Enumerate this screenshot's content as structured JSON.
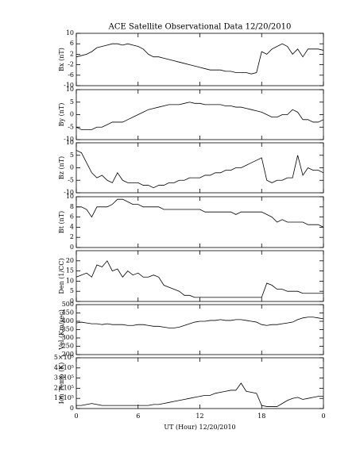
{
  "chart_data": [
    {
      "type": "line",
      "title": "ACE Satellite Observational Data   12/20/2010",
      "ylabel": "Bx (nT)",
      "x": [
        0,
        0.5,
        1,
        1.5,
        2,
        2.5,
        3,
        3.5,
        4,
        4.5,
        5,
        5.5,
        6,
        6.5,
        7,
        7.5,
        8,
        8.5,
        9,
        9.5,
        10,
        10.5,
        11,
        11.5,
        12,
        12.5,
        13,
        13.5,
        14,
        14.5,
        15,
        15.5,
        16,
        16.5,
        17,
        17.5,
        18,
        18.5,
        19,
        19.5,
        20,
        20.5,
        21,
        21.5,
        22,
        22.5,
        23,
        23.5,
        24
      ],
      "values": [
        1,
        1.5,
        2,
        3,
        4.5,
        5,
        5.5,
        6,
        6,
        5.5,
        6,
        5.5,
        5,
        4,
        2,
        1,
        1,
        0.5,
        0,
        -0.5,
        -1,
        -1.5,
        -2,
        -2.5,
        -3,
        -3.5,
        -4,
        -4,
        -4,
        -4.5,
        -4.5,
        -5,
        -5,
        -5,
        -5.5,
        -5,
        3,
        2,
        4,
        5,
        6,
        5,
        2,
        4,
        1,
        4,
        4,
        4,
        3.5
      ],
      "color": "#000000",
      "xlim": [
        0,
        24
      ],
      "xticks": [
        0,
        6,
        12,
        18,
        {
          "value": 24,
          "label": "0"
        }
      ],
      "ylim": [
        -10,
        10
      ],
      "yticks": [
        -10,
        -6,
        -2,
        2,
        6,
        10
      ]
    },
    {
      "type": "line",
      "ylabel": "By (nT)",
      "x": [
        0,
        0.5,
        1,
        1.5,
        2,
        2.5,
        3,
        3.5,
        4,
        4.5,
        5,
        5.5,
        6,
        6.5,
        7,
        7.5,
        8,
        8.5,
        9,
        9.5,
        10,
        10.5,
        11,
        11.5,
        12,
        12.5,
        13,
        13.5,
        14,
        14.5,
        15,
        15.5,
        16,
        16.5,
        17,
        17.5,
        18,
        18.5,
        19,
        19.5,
        20,
        20.5,
        21,
        21.5,
        22,
        22.5,
        23,
        23.5,
        24
      ],
      "values": [
        -5,
        -6,
        -6,
        -6,
        -5,
        -5,
        -4,
        -3,
        -3,
        -3,
        -2,
        -1,
        0,
        1,
        2,
        2.5,
        3,
        3.5,
        4,
        4,
        4,
        4.5,
        5,
        4.5,
        4.5,
        4,
        4,
        4,
        4,
        3.5,
        3.5,
        3,
        3,
        2.5,
        2,
        1.5,
        1,
        0,
        -1,
        -1,
        0,
        0,
        2,
        1,
        -2,
        -2,
        -3,
        -3,
        -2
      ],
      "color": "#000000",
      "xlim": [
        0,
        24
      ],
      "xticks": [
        0,
        6,
        12,
        18,
        {
          "value": 24,
          "label": "0"
        }
      ],
      "ylim": [
        -10,
        10
      ],
      "yticks": [
        -10,
        -5,
        0,
        5,
        10
      ]
    },
    {
      "type": "line",
      "ylabel": "Bz (nT)",
      "x": [
        0,
        0.5,
        1,
        1.5,
        2,
        2.5,
        3,
        3.5,
        4,
        4.5,
        5,
        5.5,
        6,
        6.5,
        7,
        7.5,
        8,
        8.5,
        9,
        9.5,
        10,
        10.5,
        11,
        11.5,
        12,
        12.5,
        13,
        13.5,
        14,
        14.5,
        15,
        15.5,
        16,
        16.5,
        17,
        17.5,
        18,
        18.5,
        19,
        19.5,
        20,
        20.5,
        21,
        21.5,
        22,
        22.5,
        23,
        23.5,
        24
      ],
      "values": [
        7,
        6,
        2,
        -2,
        -4,
        -3,
        -5,
        -6,
        -2,
        -5,
        -6,
        -6,
        -6,
        -7,
        -7,
        -8,
        -7,
        -7,
        -6,
        -6,
        -5,
        -5,
        -4,
        -4,
        -4,
        -3,
        -3,
        -2,
        -2,
        -1,
        -1,
        0,
        0,
        1,
        2,
        3,
        4,
        -5,
        -6,
        -5,
        -5,
        -4,
        -4,
        5,
        -3,
        0,
        -1,
        -1,
        -2
      ],
      "color": "#000000",
      "xlim": [
        0,
        24
      ],
      "xticks": [
        0,
        6,
        12,
        18,
        {
          "value": 24,
          "label": "0"
        }
      ],
      "ylim": [
        -10,
        10
      ],
      "yticks": [
        -10,
        -5,
        0,
        5,
        10
      ]
    },
    {
      "type": "line",
      "ylabel": "Bt (nT)",
      "x": [
        0,
        0.5,
        1,
        1.5,
        2,
        2.5,
        3,
        3.5,
        4,
        4.5,
        5,
        5.5,
        6,
        6.5,
        7,
        7.5,
        8,
        8.5,
        9,
        9.5,
        10,
        10.5,
        11,
        11.5,
        12,
        12.5,
        13,
        13.5,
        14,
        14.5,
        15,
        15.5,
        16,
        16.5,
        17,
        17.5,
        18,
        18.5,
        19,
        19.5,
        20,
        20.5,
        21,
        21.5,
        22,
        22.5,
        23,
        23.5,
        24
      ],
      "values": [
        8,
        8,
        7.5,
        6,
        8,
        8,
        8,
        8.5,
        9.5,
        9.5,
        9,
        8.5,
        8.5,
        8,
        8,
        8,
        8,
        7.5,
        7.5,
        7.5,
        7.5,
        7.5,
        7.5,
        7.5,
        7.5,
        7,
        7,
        7,
        7,
        7,
        7,
        6.5,
        7,
        7,
        7,
        7,
        7,
        6.5,
        6,
        5,
        5.5,
        5,
        5,
        5,
        5,
        4.5,
        4.5,
        4.5,
        4
      ],
      "color": "#000000",
      "xlim": [
        0,
        24
      ],
      "xticks": [
        0,
        6,
        12,
        18,
        {
          "value": 24,
          "label": "0"
        }
      ],
      "ylim": [
        0,
        10
      ],
      "yticks": [
        0,
        2,
        4,
        6,
        8,
        10
      ]
    },
    {
      "type": "line",
      "ylabel": "Den (1/CC)",
      "x": [
        0,
        0.5,
        1,
        1.5,
        2,
        2.5,
        3,
        3.5,
        4,
        4.5,
        5,
        5.5,
        6,
        6.5,
        7,
        7.5,
        8,
        8.5,
        9,
        9.5,
        10,
        10.5,
        11,
        11.5,
        12,
        12.5,
        13,
        13.5,
        14,
        14.5,
        15,
        15.5,
        16,
        16.5,
        17,
        17.5,
        18,
        18.5,
        19,
        19.5,
        20,
        20.5,
        21,
        21.5,
        22,
        22.5,
        23,
        23.5,
        24
      ],
      "values": [
        12,
        13,
        14,
        12,
        18,
        17,
        20,
        15,
        16,
        12,
        15,
        13,
        14,
        12,
        12,
        13,
        12,
        8,
        7,
        6,
        5,
        3,
        3,
        2,
        2,
        2,
        2,
        2,
        2,
        2,
        2,
        2,
        2,
        2,
        2,
        2,
        2,
        9,
        8,
        6,
        6,
        5,
        5,
        5,
        4,
        4,
        4,
        4,
        4
      ],
      "color": "#000000",
      "xlim": [
        0,
        24
      ],
      "xticks": [
        0,
        6,
        12,
        18,
        {
          "value": 24,
          "label": "0"
        }
      ],
      "ylim": [
        0,
        25
      ],
      "yticks": [
        0,
        5,
        10,
        15,
        20
      ]
    },
    {
      "type": "line",
      "ylabel": "Vel (Km/sec)",
      "x": [
        0,
        0.5,
        1,
        1.5,
        2,
        2.5,
        3,
        3.5,
        4,
        4.5,
        5,
        5.5,
        6,
        6.5,
        7,
        7.5,
        8,
        8.5,
        9,
        9.5,
        10,
        10.5,
        11,
        11.5,
        12,
        12.5,
        13,
        13.5,
        14,
        14.5,
        15,
        15.5,
        16,
        16.5,
        17,
        17.5,
        18,
        18.5,
        19,
        19.5,
        20,
        20.5,
        21,
        21.5,
        22,
        22.5,
        23,
        23.5,
        24
      ],
      "values": [
        390,
        395,
        390,
        385,
        385,
        380,
        385,
        380,
        380,
        380,
        375,
        375,
        380,
        380,
        375,
        370,
        370,
        365,
        360,
        360,
        365,
        375,
        385,
        395,
        400,
        400,
        405,
        405,
        410,
        405,
        405,
        410,
        410,
        405,
        400,
        395,
        380,
        375,
        380,
        380,
        385,
        390,
        395,
        410,
        420,
        425,
        425,
        420,
        415
      ],
      "color": "#000000",
      "xlim": [
        0,
        24
      ],
      "xticks": [
        0,
        6,
        12,
        18,
        {
          "value": 24,
          "label": "0"
        }
      ],
      "ylim": [
        200,
        500
      ],
      "yticks": [
        200,
        250,
        300,
        350,
        400,
        450,
        500
      ]
    },
    {
      "type": "line",
      "ylabel": "Ion Temp (K)",
      "xlabel": "UT (Hour)   12/20/2010",
      "x": [
        0,
        0.5,
        1,
        1.5,
        2,
        2.5,
        3,
        3.5,
        4,
        4.5,
        5,
        5.5,
        6,
        6.5,
        7,
        7.5,
        8,
        8.5,
        9,
        9.5,
        10,
        10.5,
        11,
        11.5,
        12,
        12.5,
        13,
        13.5,
        14,
        14.5,
        15,
        15.5,
        16,
        16.5,
        17,
        17.5,
        18,
        18.5,
        19,
        19.5,
        20,
        20.5,
        21,
        21.5,
        22,
        22.5,
        23,
        23.5,
        24
      ],
      "values": [
        30000,
        30000,
        40000,
        50000,
        40000,
        30000,
        30000,
        30000,
        30000,
        30000,
        30000,
        30000,
        30000,
        30000,
        30000,
        40000,
        40000,
        50000,
        60000,
        70000,
        80000,
        90000,
        100000,
        110000,
        120000,
        130000,
        130000,
        150000,
        160000,
        170000,
        180000,
        180000,
        250000,
        170000,
        160000,
        150000,
        30000,
        20000,
        20000,
        20000,
        50000,
        80000,
        100000,
        110000,
        90000,
        100000,
        110000,
        120000,
        120000
      ],
      "color": "#000000",
      "xlim": [
        0,
        24
      ],
      "xticks": [
        0,
        6,
        12,
        18,
        {
          "value": 24,
          "label": "0"
        }
      ],
      "ylim": [
        0,
        500000
      ],
      "yticks": [
        0,
        {
          "value": 100000,
          "label": "1×10⁵"
        },
        {
          "value": 200000,
          "label": "2×10⁵"
        },
        {
          "value": 300000,
          "label": "3×10⁵"
        },
        {
          "value": 400000,
          "label": "4×10⁵"
        },
        {
          "value": 500000,
          "label": "5×10⁵"
        }
      ]
    }
  ]
}
